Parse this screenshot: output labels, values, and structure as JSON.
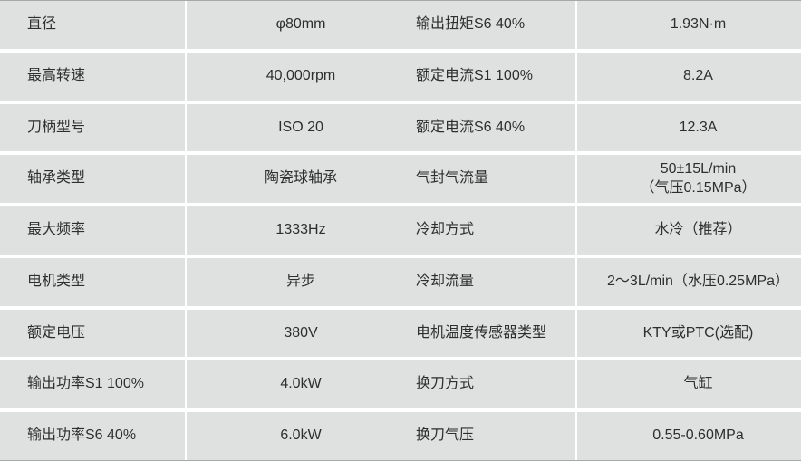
{
  "colors": {
    "cell_background": "#dfe0e0",
    "divider": "#ffffff",
    "text": "#2d2e2e",
    "outer_border": "#a7a8a8"
  },
  "table": {
    "rows": [
      [
        "直径",
        "φ80mm",
        "输出扭矩S6 40%",
        "1.93N·m"
      ],
      [
        "最高转速",
        "40,000rpm",
        "额定电流S1 100%",
        "8.2A"
      ],
      [
        "刀柄型号",
        "ISO 20",
        "额定电流S6 40%",
        "12.3A"
      ],
      [
        "轴承类型",
        "陶瓷球轴承",
        "气封气流量",
        "50±15L/min\n（气压0.15MPa）"
      ],
      [
        "最大频率",
        "1333Hz",
        "冷却方式",
        "水冷（推荐）"
      ],
      [
        "电机类型",
        "异步",
        "冷却流量",
        "2～3L/min（水压0.25MPa）"
      ],
      [
        "额定电压",
        "380V",
        "电机温度传感器类型",
        "KTY或PTC(选配)"
      ],
      [
        "输出功率S1 100%",
        "4.0kW",
        "换刀方式",
        "气缸"
      ],
      [
        "输出功率S6 40%",
        "6.0kW",
        "换刀气压",
        "0.55-0.60MPa"
      ]
    ]
  }
}
